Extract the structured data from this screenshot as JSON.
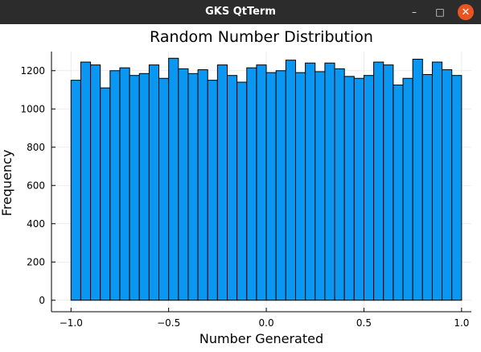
{
  "window": {
    "title": "GKS QtTerm",
    "min_icon": "minimize-icon",
    "max_icon": "maximize-icon",
    "close_icon": "close-icon",
    "min_glyph": "–",
    "max_glyph": "□",
    "close_glyph": "✕",
    "close_color": "#e95420"
  },
  "chart_data": {
    "type": "bar",
    "title": "Random Number Distribution",
    "xlabel": "Number Generated",
    "ylabel": "Frequency",
    "bar_color": "#0a97f2",
    "bin_edges": [
      -1.0,
      -0.95,
      -0.9,
      -0.85,
      -0.8,
      -0.75,
      -0.7,
      -0.65,
      -0.6,
      -0.55,
      -0.5,
      -0.45,
      -0.4,
      -0.35,
      -0.3,
      -0.25,
      -0.2,
      -0.15,
      -0.1,
      -0.05,
      0.0,
      0.05,
      0.1,
      0.15,
      0.2,
      0.25,
      0.3,
      0.35,
      0.4,
      0.45,
      0.5,
      0.55,
      0.6,
      0.65,
      0.7,
      0.75,
      0.8,
      0.85,
      0.9,
      0.95,
      1.0
    ],
    "values": [
      1150,
      1245,
      1230,
      1110,
      1200,
      1215,
      1175,
      1185,
      1230,
      1160,
      1265,
      1210,
      1185,
      1205,
      1150,
      1230,
      1175,
      1140,
      1215,
      1230,
      1190,
      1200,
      1255,
      1190,
      1240,
      1195,
      1240,
      1210,
      1170,
      1160,
      1175,
      1245,
      1230,
      1125,
      1160,
      1260,
      1180,
      1245,
      1205,
      1175
    ],
    "xlim": [
      -1.1,
      1.05
    ],
    "ylim": [
      -60,
      1300
    ],
    "xticks": [
      -1.0,
      -0.5,
      0.0,
      0.5,
      1.0
    ],
    "xtick_labels": [
      "−1.0",
      "−0.5",
      "0.0",
      "0.5",
      "1.0"
    ],
    "yticks": [
      0,
      200,
      400,
      600,
      800,
      1000,
      1200
    ],
    "ytick_labels": [
      "0",
      "200",
      "400",
      "600",
      "800",
      "1000",
      "1200"
    ],
    "grid": true,
    "legend": false
  }
}
